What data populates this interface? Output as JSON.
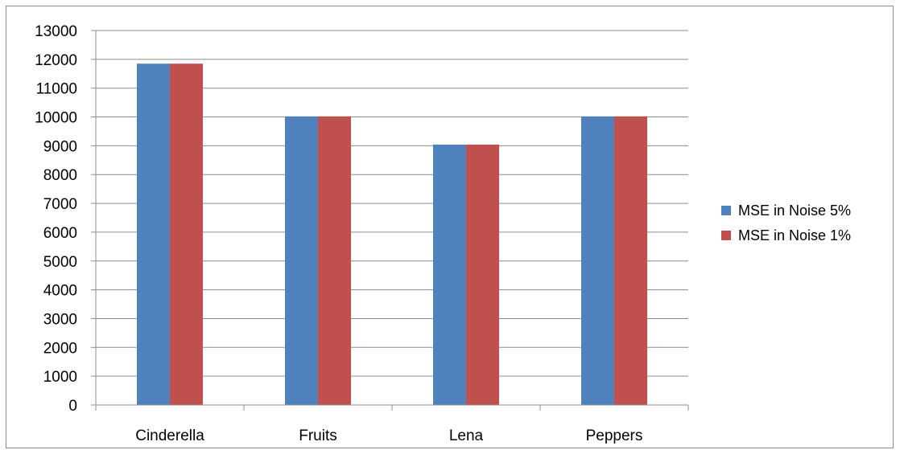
{
  "chart_data": {
    "type": "bar",
    "title": "",
    "xlabel": "",
    "ylabel": "",
    "categories": [
      "Cinderella",
      "Fruits",
      "Lena",
      "Peppers"
    ],
    "series": [
      {
        "name": "MSE in Noise 5%",
        "color": "#4f81bd",
        "values": [
          11850,
          10020,
          9040,
          10020
        ]
      },
      {
        "name": "MSE in Noise 1%",
        "color": "#c0504d",
        "values": [
          11850,
          10020,
          9040,
          10020
        ]
      }
    ],
    "ylim": [
      0,
      13000
    ],
    "yticks": [
      0,
      1000,
      2000,
      3000,
      4000,
      5000,
      6000,
      7000,
      8000,
      9000,
      10000,
      11000,
      12000,
      13000
    ],
    "grid": true,
    "legend_position": "right"
  }
}
